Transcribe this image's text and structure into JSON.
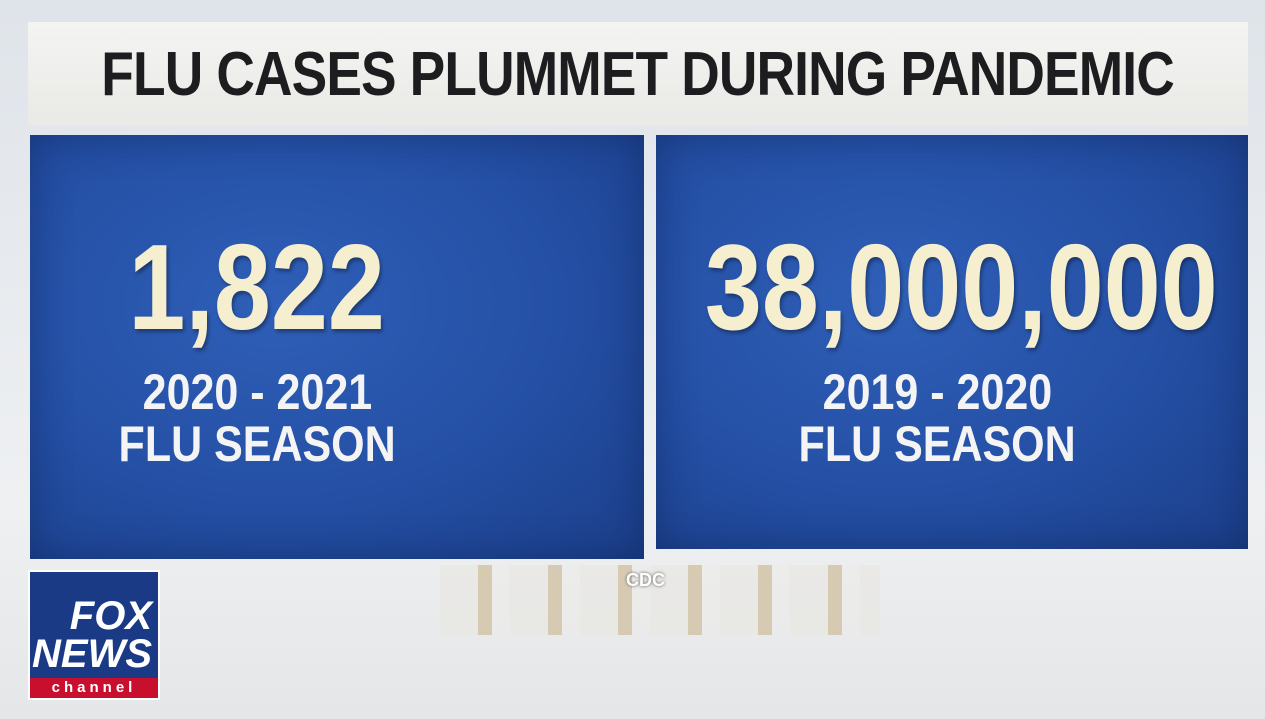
{
  "title": "FLU CASES PLUMMET DURING PANDEMIC",
  "panels": [
    {
      "number": "1,822",
      "season": "2020 - 2021",
      "label": "FLU SEASON"
    },
    {
      "number": "38,000,000",
      "season": "2019 - 2020",
      "label": "FLU SEASON"
    }
  ],
  "source": "CDC",
  "logo": {
    "line1": "FOX",
    "line2": "NEWS",
    "line3": "channel"
  }
}
